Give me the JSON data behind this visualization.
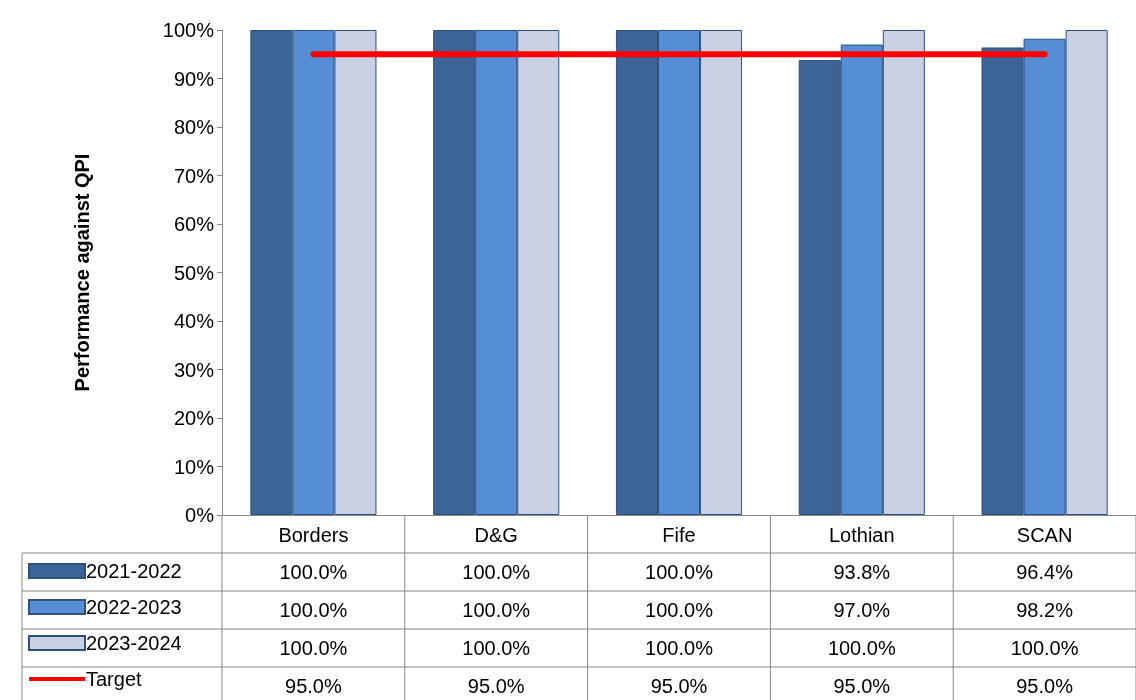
{
  "chart_data": {
    "type": "bar",
    "ylabel": "Performance against QPI",
    "categories": [
      "Borders",
      "D&G",
      "Fife",
      "Lothian",
      "SCAN"
    ],
    "series": [
      {
        "name": "2021-2022",
        "color": "#3c6496",
        "values": [
          100,
          100,
          100,
          93.8,
          96.4
        ],
        "value_labels": [
          "100.0%",
          "100.0%",
          "100.0%",
          "93.8%",
          "96.4%"
        ]
      },
      {
        "name": "2022-2023",
        "color": "#558ed5",
        "values": [
          100,
          100,
          100,
          97.0,
          98.2
        ],
        "value_labels": [
          "100.0%",
          "100.0%",
          "100.0%",
          "97.0%",
          "98.2%"
        ]
      },
      {
        "name": "2023-2024",
        "color": "#c9d0e3",
        "values": [
          100,
          100,
          100,
          100,
          100
        ],
        "value_labels": [
          "100.0%",
          "100.0%",
          "100.0%",
          "100.0%",
          "100.0%"
        ]
      },
      {
        "name": "Target",
        "type": "line",
        "color": "#ff0000",
        "marker": "none",
        "values": [
          95,
          95,
          95,
          95,
          95
        ],
        "value_labels": [
          "95.0%",
          "95.0%",
          "95.0%",
          "95.0%",
          "95.0%"
        ]
      }
    ],
    "ylim": [
      0,
      100
    ],
    "yticks": [
      {
        "value": 0,
        "label": "0%"
      },
      {
        "value": 10,
        "label": "10%"
      },
      {
        "value": 20,
        "label": "20%"
      },
      {
        "value": 30,
        "label": "30%"
      },
      {
        "value": 40,
        "label": "40%"
      },
      {
        "value": 50,
        "label": "50%"
      },
      {
        "value": 60,
        "label": "60%"
      },
      {
        "value": 70,
        "label": "70%"
      },
      {
        "value": 80,
        "label": "80%"
      },
      {
        "value": 90,
        "label": "90%"
      },
      {
        "value": 100,
        "label": "100%"
      }
    ],
    "grid": false,
    "legend": "bottom left"
  }
}
